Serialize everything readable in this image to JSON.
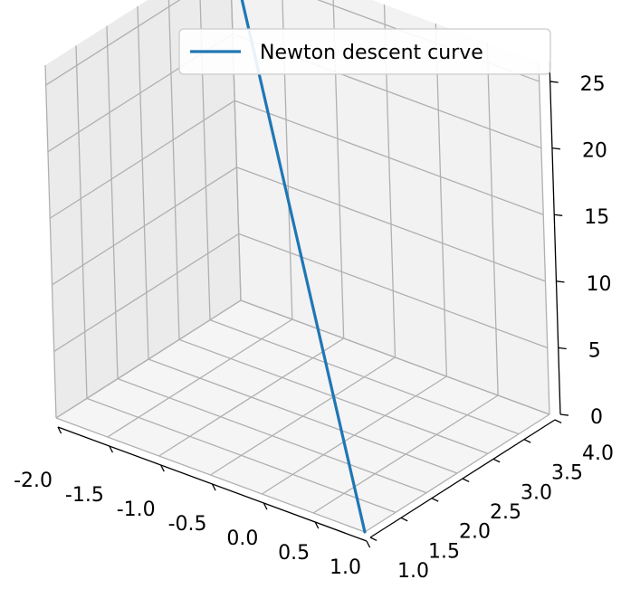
{
  "chart_data": {
    "type": "line",
    "projection": "3d",
    "series": [
      {
        "name": "Newton descent curve",
        "color": "#1f77b4",
        "x": [
          -2.0,
          1.0
        ],
        "y": [
          4.0,
          1.0
        ],
        "z": [
          26.5,
          0.0
        ]
      }
    ],
    "x_ticks": [
      "-2.0",
      "-1.5",
      "-1.0",
      "-0.5",
      "0.0",
      "0.5",
      "1.0"
    ],
    "y_ticks": [
      "1.0",
      "1.5",
      "2.0",
      "2.5",
      "3.0",
      "3.5",
      "4.0"
    ],
    "z_ticks": [
      "0",
      "5",
      "10",
      "15",
      "20",
      "25"
    ],
    "xlim": [
      -2.0,
      1.0
    ],
    "ylim": [
      1.0,
      4.0
    ],
    "zlim": [
      0,
      26.5
    ],
    "grid": true,
    "legend_position": "top-right",
    "pane_colors": {
      "left": "#ebebeb",
      "back": "#f2f2f2",
      "floor": "#f5f5f5"
    }
  }
}
